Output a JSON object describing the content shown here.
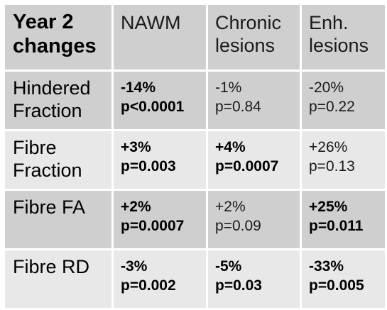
{
  "table": {
    "header": {
      "title_line1": "Year 2",
      "title_line2": "changes",
      "columns": [
        {
          "line1": "NAWM",
          "line2": ""
        },
        {
          "line1": "Chronic",
          "line2": "lesions"
        },
        {
          "line1": "Enh.",
          "line2": "lesions"
        }
      ]
    },
    "rows": [
      {
        "label_line1": "Hindered",
        "label_line2": "Fraction",
        "cells": [
          {
            "change": "-14%",
            "p": "p<0.0001",
            "significant": true
          },
          {
            "change": "-1%",
            "p": "p=0.84",
            "significant": false
          },
          {
            "change": "-20%",
            "p": "p=0.22",
            "significant": false
          }
        ]
      },
      {
        "label_line1": "Fibre",
        "label_line2": "Fraction",
        "cells": [
          {
            "change": "+3%",
            "p": "p=0.003",
            "significant": true
          },
          {
            "change": "+4%",
            "p": "p=0.0007",
            "significant": true
          },
          {
            "change": "+26%",
            "p": "p=0.13",
            "significant": false
          }
        ]
      },
      {
        "label_line1": "Fibre FA",
        "label_line2": "",
        "cells": [
          {
            "change": "+2%",
            "p": "p=0.0007",
            "significant": true
          },
          {
            "change": "+2%",
            "p": "p=0.09",
            "significant": false
          },
          {
            "change": "+25%",
            "p": "p=0.011",
            "significant": true
          }
        ]
      },
      {
        "label_line1": "Fibre RD",
        "label_line2": "",
        "cells": [
          {
            "change": "-3%",
            "p": "p=0.002",
            "significant": true
          },
          {
            "change": "-5%",
            "p": "p=0.03",
            "significant": true
          },
          {
            "change": "-33%",
            "p": "p=0.005",
            "significant": true
          }
        ]
      }
    ],
    "colors": {
      "dark_row": "#cfcfcf",
      "light_row": "#e8e8e8",
      "background": "#ffffff"
    }
  }
}
